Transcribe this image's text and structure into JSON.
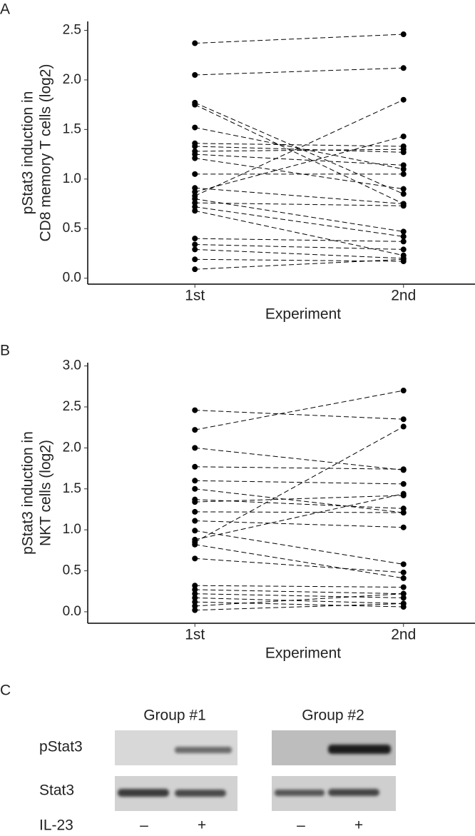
{
  "chart_data": [
    {
      "type": "line",
      "panel": "A",
      "ylabel": [
        "pStat3 induction in",
        "CD8 memory T cells (log2)"
      ],
      "xlabel": "Experiment",
      "categories": [
        "1st",
        "2nd"
      ],
      "color": "#000000",
      "ylim": [
        -0.06,
        2.59
      ],
      "yticks": [
        {
          "value": 0,
          "label": "0.0"
        },
        0.5,
        {
          "value": 1,
          "label": "1.0"
        },
        1.5,
        {
          "value": 2,
          "label": "2.0"
        },
        2.5
      ],
      "series": [
        {
          "values": [
            2.37,
            2.46
          ]
        },
        {
          "values": [
            2.05,
            2.12
          ]
        },
        {
          "values": [
            1.77,
            0.85
          ]
        },
        {
          "values": [
            1.75,
            0.75
          ]
        },
        {
          "values": [
            1.52,
            1.1
          ]
        },
        {
          "values": [
            1.36,
            1.33
          ]
        },
        {
          "values": [
            1.33,
            1.27
          ]
        },
        {
          "values": [
            1.28,
            1.3
          ]
        },
        {
          "values": [
            1.25,
            1.14
          ]
        },
        {
          "values": [
            1.21,
            0.9
          ]
        },
        {
          "values": [
            1.05,
            1.05
          ]
        },
        {
          "values": [
            0.91,
            0.75
          ]
        },
        {
          "values": [
            0.87,
            1.43
          ]
        },
        {
          "values": [
            0.83,
            1.8
          ]
        },
        {
          "values": [
            0.8,
            0.47
          ]
        },
        {
          "values": [
            0.76,
            0.73
          ]
        },
        {
          "values": [
            0.72,
            0.42
          ]
        },
        {
          "values": [
            0.68,
            0.23
          ]
        },
        {
          "values": [
            0.4,
            0.37
          ]
        },
        {
          "values": [
            0.34,
            0.29
          ]
        },
        {
          "values": [
            0.29,
            0.2
          ]
        },
        {
          "values": [
            0.19,
            0.17
          ]
        },
        {
          "values": [
            0.09,
            0.19
          ]
        }
      ]
    },
    {
      "type": "line",
      "panel": "B",
      "ylabel": [
        "pStat3 induction in",
        "NKT cells (log2)"
      ],
      "xlabel": "Experiment",
      "categories": [
        "1st",
        "2nd"
      ],
      "color": "#000000",
      "ylim": [
        -0.14,
        3.04
      ],
      "yticks": [
        {
          "value": 0,
          "label": "0.0"
        },
        0.5,
        {
          "value": 1,
          "label": "1.0"
        },
        1.5,
        {
          "value": 2,
          "label": "2.0"
        },
        2.5,
        {
          "value": 3,
          "label": "3.0"
        }
      ],
      "series": [
        {
          "values": [
            2.46,
            2.35
          ]
        },
        {
          "values": [
            2.22,
            2.7
          ]
        },
        {
          "values": [
            2.0,
            1.73
          ]
        },
        {
          "values": [
            1.77,
            1.74
          ]
        },
        {
          "values": [
            1.6,
            1.56
          ]
        },
        {
          "values": [
            1.5,
            1.21
          ]
        },
        {
          "values": [
            1.37,
            1.26
          ]
        },
        {
          "values": [
            1.34,
            1.42
          ]
        },
        {
          "values": [
            1.22,
            1.21
          ]
        },
        {
          "values": [
            1.11,
            1.03
          ]
        },
        {
          "values": [
            0.85,
            2.26
          ]
        },
        {
          "values": [
            0.88,
            1.44
          ]
        },
        {
          "values": [
            0.82,
            0.41
          ]
        },
        {
          "values": [
            0.65,
            0.48
          ]
        },
        {
          "values": [
            0.99,
            0.58
          ]
        },
        {
          "values": [
            0.32,
            0.3
          ]
        },
        {
          "values": [
            0.27,
            0.22
          ]
        },
        {
          "values": [
            0.22,
            0.17
          ]
        },
        {
          "values": [
            0.17,
            0.1
          ]
        },
        {
          "values": [
            0.12,
            0.06
          ]
        },
        {
          "values": [
            0.07,
            0.22
          ]
        },
        {
          "values": [
            0.02,
            0.1
          ]
        }
      ]
    }
  ],
  "blot": {
    "panel": "C",
    "groups": [
      "Group #1",
      "Group #2"
    ],
    "rows": [
      "pStat3",
      "Stat3"
    ],
    "treatment": "IL-23",
    "conditions": [
      "–",
      "+"
    ]
  }
}
